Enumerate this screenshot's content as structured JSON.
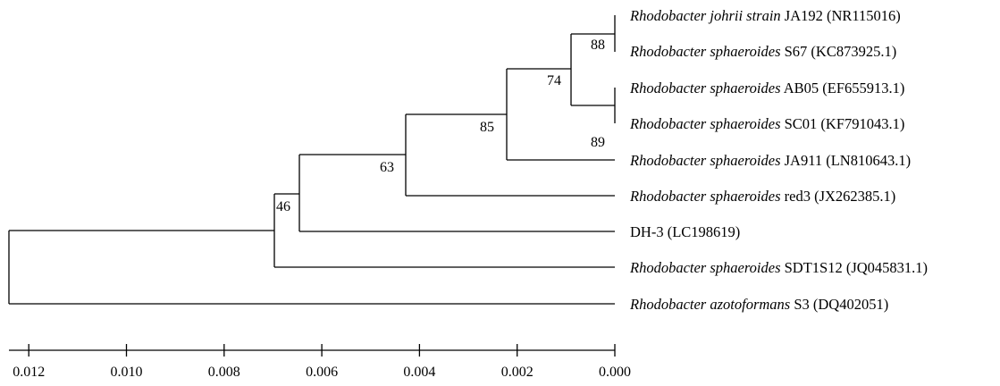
{
  "taxa": [
    {
      "id": "t1",
      "italic": "Rhodobacter johrii strain",
      "rest": " JA192 (NR115016)"
    },
    {
      "id": "t2",
      "italic": "Rhodobacter sphaeroides",
      "rest": " S67 (KC873925.1)"
    },
    {
      "id": "t3",
      "italic": "Rhodobacter sphaeroides",
      "rest": " AB05 (EF655913.1)"
    },
    {
      "id": "t4",
      "italic": "Rhodobacter sphaeroides",
      "rest": " SC01 (KF791043.1)"
    },
    {
      "id": "t5",
      "italic": "Rhodobacter sphaeroides",
      "rest": " JA911 (LN810643.1)"
    },
    {
      "id": "t6",
      "italic": "Rhodobacter sphaeroides",
      "rest": " red3 (JX262385.1)"
    },
    {
      "id": "t7",
      "italic": "",
      "rest": "DH-3 (LC198619)"
    },
    {
      "id": "t8",
      "italic": "Rhodobacter sphaeroides",
      "rest": " SDT1S12 (JQ045831.1)"
    },
    {
      "id": "t9",
      "italic": "Rhodobacter azotoformans",
      "rest": " S3 (DQ402051)"
    }
  ],
  "bootstrap": [
    "88",
    "74",
    "89",
    "85",
    "63",
    "46"
  ],
  "scale": {
    "ticks": [
      0.012,
      0.01,
      0.008,
      0.006,
      0.004,
      0.002,
      0.0
    ],
    "tick_labels": [
      "0.012",
      "0.010",
      "0.008",
      "0.006",
      "0.004",
      "0.002",
      "0.000"
    ]
  }
}
